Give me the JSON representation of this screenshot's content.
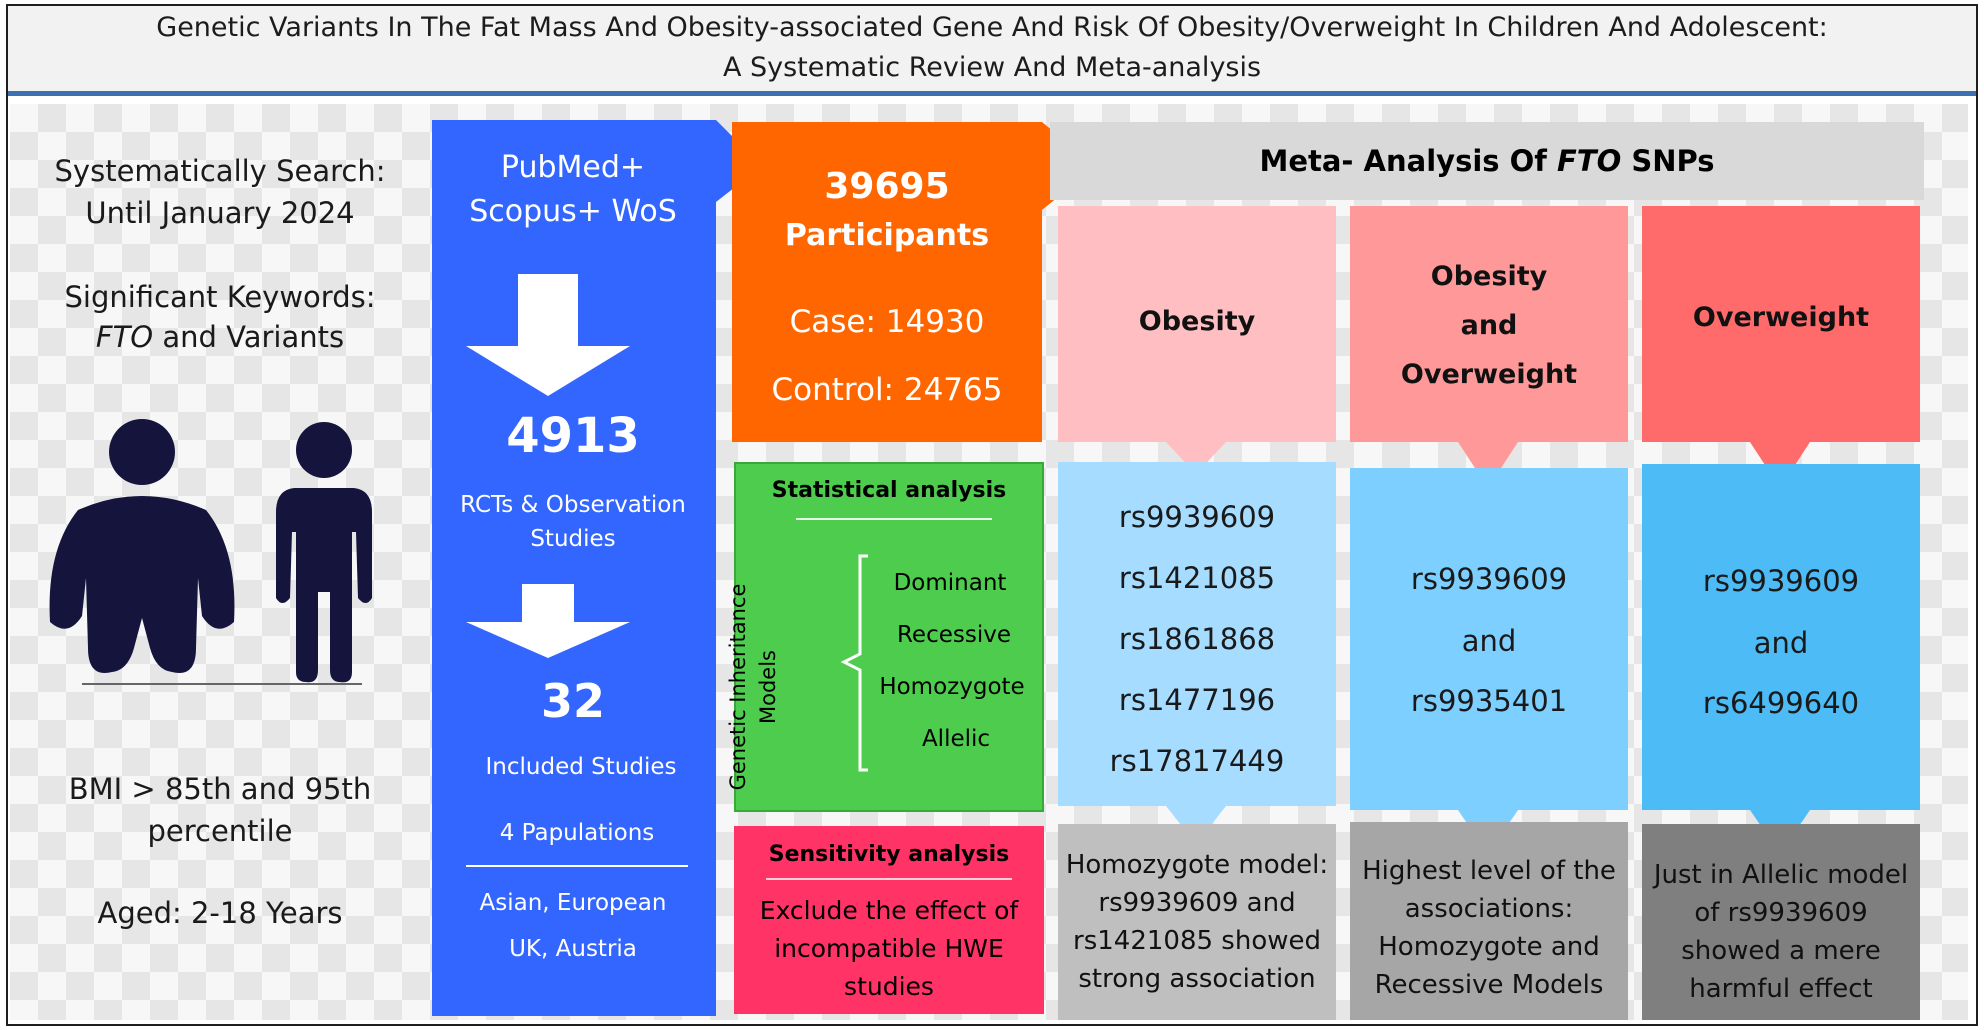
{
  "header": {
    "title_line1": "Genetic Variants In The Fat Mass And Obesity-associated Gene And Risk Of Obesity/Overweight In Children And Adolescent:",
    "title_line2": "A Systematic Review And Meta-analysis"
  },
  "left_panel": {
    "search_line1": "Systematically Search:",
    "search_line2": "Until January 2024",
    "keywords_line1": "Significant Keywords:",
    "keywords_gene": "FTO",
    "keywords_rest": " and Variants",
    "bmi_line1": "BMI > 85th and 95th",
    "bmi_line2": "percentile",
    "aged": "Aged: 2-18 Years",
    "icon": "people-obese-and-normal-icon"
  },
  "search_column": {
    "databases_line1": "PubMed+",
    "databases_line2": "Scopus+ WoS",
    "count_1": "4913",
    "count_1_label_line1": "RCTs & Observation",
    "count_1_label_line2": "Studies",
    "count_2": "32",
    "count_2_label": "Included Studies",
    "populations": "4 Papulations",
    "regions_line1": "Asian, European",
    "regions_line2": "UK, Austria"
  },
  "participants": {
    "total": "39695",
    "label": "Participants",
    "case": "Case: 14930",
    "control": "Control: 24765"
  },
  "statistical": {
    "title": "Statistical analysis",
    "side_label_line1": "Genetic Inheritance",
    "side_label_line2": "Models",
    "models": [
      "Dominant",
      "Recessive",
      "Homozygote",
      "Allelic"
    ]
  },
  "sensitivity": {
    "title": "Sensitivity analysis",
    "lines": [
      "Exclude  the effect of",
      "incompatible HWE",
      "studies"
    ]
  },
  "meta": {
    "title_prefix": "Meta- Analysis Of ",
    "title_gene": "FTO",
    "title_suffix": " SNPs",
    "columns": [
      {
        "category_lines": [
          "Obesity"
        ],
        "snps": [
          "rs9939609",
          "rs1421085",
          "rs1861868",
          "rs1477196",
          "rs17817449"
        ],
        "result_lines": [
          "Homozygote model:",
          "rs9939609 and",
          "rs1421085 showed",
          "strong association"
        ]
      },
      {
        "category_lines": [
          "Obesity",
          "and",
          "Overweight"
        ],
        "snps": [
          "rs9939609",
          "and",
          "rs9935401"
        ],
        "result_lines": [
          "Highest level of the",
          "associations:",
          "Homozygote and",
          "Recessive Models"
        ]
      },
      {
        "category_lines": [
          "Overweight"
        ],
        "snps": [
          "rs9939609",
          "and",
          "rs6499640"
        ],
        "result_lines": [
          "Just in Allelic model",
          "of rs9939609",
          "showed a mere",
          "harmful effect"
        ]
      }
    ]
  },
  "colors": {
    "header_underline": "#3d6fb3",
    "blue_column": "#3366ff",
    "orange": "#ff6600",
    "green": "#4dcc4d",
    "red": "#ff3366",
    "meta_header": "#d9d9d9",
    "obesity": "#ffbfc2",
    "obesity_overweight": "#ff9999",
    "overweight": "#ff6b6b",
    "snp1": "#a6dcff",
    "snp2": "#7dcfff",
    "snp3": "#4dbbf5",
    "result1": "#bfbfbf",
    "result2": "#a6a6a6",
    "result3": "#7f7f7f",
    "icon_fill": "#14143d"
  }
}
